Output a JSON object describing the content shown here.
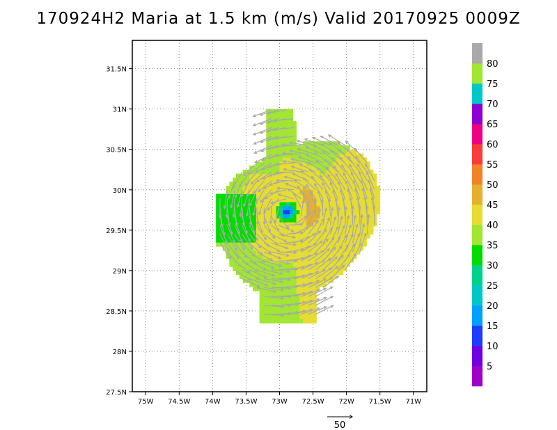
{
  "title": "170924H2 Maria at 1.5 km (m/s) Valid 20170925 0009Z",
  "chart_data": {
    "type": "heatmap",
    "title": "170924H2 Maria at 1.5 km (m/s) Valid 20170925 0009Z",
    "xlim": [
      -75.2,
      -70.8
    ],
    "ylim": [
      27.5,
      31.85
    ],
    "x_ticks": [
      {
        "value": -75.0,
        "label": "75W"
      },
      {
        "value": -74.5,
        "label": "74.5W"
      },
      {
        "value": -74.0,
        "label": "74W"
      },
      {
        "value": -73.5,
        "label": "73.5W"
      },
      {
        "value": -73.0,
        "label": "73W"
      },
      {
        "value": -72.5,
        "label": "72.5W"
      },
      {
        "value": -72.0,
        "label": "72W"
      },
      {
        "value": -71.5,
        "label": "71.5W"
      },
      {
        "value": -71.0,
        "label": "71W"
      }
    ],
    "y_ticks": [
      {
        "value": 27.5,
        "label": "27.5N"
      },
      {
        "value": 28.0,
        "label": "28N"
      },
      {
        "value": 28.5,
        "label": "28.5N"
      },
      {
        "value": 29.0,
        "label": "29N"
      },
      {
        "value": 29.5,
        "label": "29.5N"
      },
      {
        "value": 30.0,
        "label": "30N"
      },
      {
        "value": 30.5,
        "label": "30.5N"
      },
      {
        "value": 31.0,
        "label": "31N"
      },
      {
        "value": 31.5,
        "label": "31.5N"
      }
    ],
    "grid": true,
    "storm_center": {
      "lon": -72.88,
      "lat": 29.73
    },
    "colorbar": {
      "levels": [
        "5",
        "10",
        "15",
        "20",
        "25",
        "30",
        "35",
        "40",
        "45",
        "50",
        "55",
        "60",
        "65",
        "70",
        "75",
        "80"
      ],
      "colors": [
        "#a000c8",
        "#7000e0",
        "#1e3cff",
        "#00a0ff",
        "#00c8c8",
        "#00d28c",
        "#00dc00",
        "#a0e632",
        "#e6dc32",
        "#e6af2d",
        "#f08228",
        "#fa3c3c",
        "#f00082",
        "#8c00d2",
        "#00c8c8",
        "#a0e632",
        "#a9a9a9"
      ]
    },
    "reference_vector": {
      "label": "50",
      "speed": 50
    }
  }
}
